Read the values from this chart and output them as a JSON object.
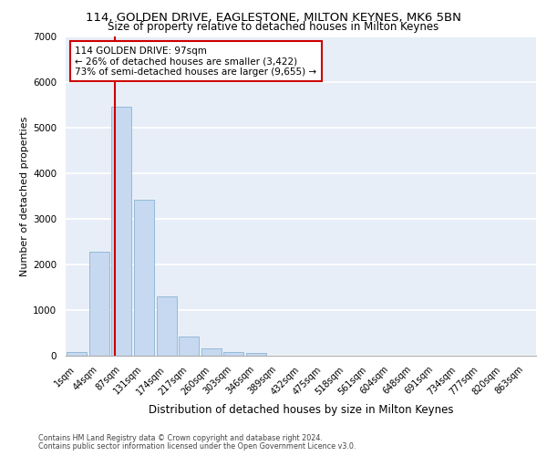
{
  "title_line1": "114, GOLDEN DRIVE, EAGLESTONE, MILTON KEYNES, MK6 5BN",
  "title_line2": "Size of property relative to detached houses in Milton Keynes",
  "xlabel": "Distribution of detached houses by size in Milton Keynes",
  "ylabel": "Number of detached properties",
  "footer_line1": "Contains HM Land Registry data © Crown copyright and database right 2024.",
  "footer_line2": "Contains public sector information licensed under the Open Government Licence v3.0.",
  "bar_labels": [
    "1sqm",
    "44sqm",
    "87sqm",
    "131sqm",
    "174sqm",
    "217sqm",
    "260sqm",
    "303sqm",
    "346sqm",
    "389sqm",
    "432sqm",
    "475sqm",
    "518sqm",
    "561sqm",
    "604sqm",
    "648sqm",
    "691sqm",
    "734sqm",
    "777sqm",
    "820sqm",
    "863sqm"
  ],
  "bar_values": [
    75,
    2280,
    5470,
    3420,
    1310,
    430,
    160,
    90,
    60,
    0,
    0,
    0,
    0,
    0,
    0,
    0,
    0,
    0,
    0,
    0,
    0
  ],
  "bar_color": "#c6d9f0",
  "bar_edge_color": "#8ab4d4",
  "annotation_text": "114 GOLDEN DRIVE: 97sqm\n← 26% of detached houses are smaller (3,422)\n73% of semi-detached houses are larger (9,655) →",
  "vline_color": "#cc0000",
  "annotation_box_color": "#ffffff",
  "annotation_box_edge_color": "#cc0000",
  "ylim": [
    0,
    7000
  ],
  "background_color": "#e8eef8",
  "grid_color": "#ffffff",
  "title_fontsize": 9.5,
  "subtitle_fontsize": 8.5,
  "ylabel_fontsize": 8,
  "xlabel_fontsize": 8.5,
  "footer_fontsize": 5.8,
  "tick_fontsize": 7,
  "ytick_fontsize": 7.5,
  "annotation_fontsize": 7.5
}
